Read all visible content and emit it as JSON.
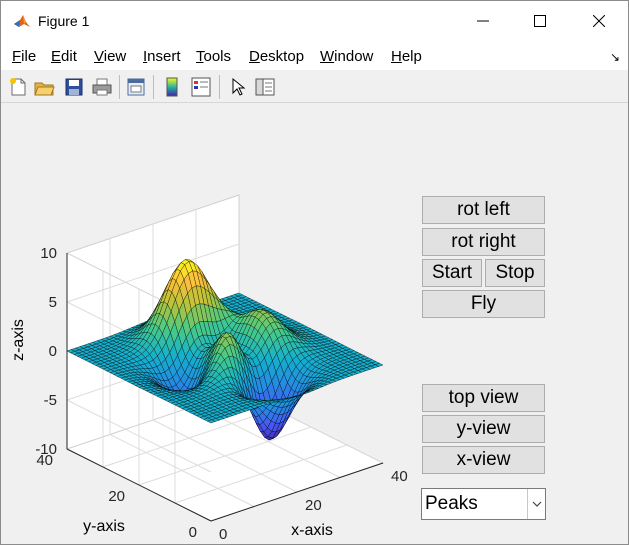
{
  "window": {
    "title": "Figure 1"
  },
  "menu": [
    {
      "label": "File"
    },
    {
      "label": "Edit"
    },
    {
      "label": "View"
    },
    {
      "label": "Insert"
    },
    {
      "label": "Tools"
    },
    {
      "label": "Desktop"
    },
    {
      "label": "Window"
    },
    {
      "label": "Help"
    }
  ],
  "toolbar": {
    "icons": [
      "new-figure-icon",
      "open-file-icon",
      "save-icon",
      "print-icon",
      "link-plot-icon",
      "colorbar-icon",
      "legend-icon",
      "pointer-icon",
      "property-editor-icon"
    ]
  },
  "controls": {
    "rot_left": "rot left",
    "rot_right": "rot right",
    "start": "Start",
    "stop": "Stop",
    "fly": "Fly",
    "top_view": "top view",
    "y_view": "y-view",
    "x_view": "x-view",
    "dropdown_value": "Peaks"
  },
  "chart_data": {
    "type": "surface",
    "function": "peaks",
    "xlabel": "x-axis",
    "ylabel": "y-axis",
    "zlabel": "z-axis",
    "xlim": [
      0,
      40
    ],
    "ylim": [
      0,
      40
    ],
    "zlim": [
      -10,
      10
    ],
    "xticks": [
      "0",
      "20",
      "40"
    ],
    "yticks": [
      "0",
      "20",
      "40"
    ],
    "zticks": [
      "-10",
      "-5",
      "0",
      "5",
      "10"
    ],
    "grid": true,
    "colormap": "parula"
  }
}
